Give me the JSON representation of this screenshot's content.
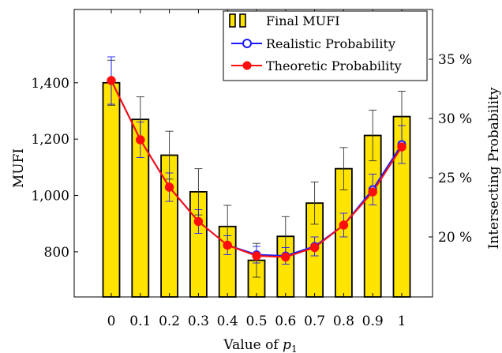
{
  "chart_data": {
    "type": "bar",
    "xlabel": "Value of ",
    "xlabel_var": "p",
    "xlabel_sub": "1",
    "ylabel_left": "MUFI",
    "ylabel_right": "Intersecting Probability",
    "categories": [
      "0",
      "0.1",
      "0.2",
      "0.3",
      "0.4",
      "0.5",
      "0.6",
      "0.7",
      "0.8",
      "0.9",
      "1"
    ],
    "y_left_lim": [
      640,
      1660
    ],
    "y_left_ticks": [
      800,
      1000,
      1200,
      1400
    ],
    "y_left_tick_labels": [
      "800",
      "1,000",
      "1,200",
      "1,400"
    ],
    "y_right_ticks": [
      20,
      25,
      30,
      35
    ],
    "y_right_tick_labels": [
      "20 %",
      "25 %",
      "30 %",
      "35 %"
    ],
    "bars": {
      "name": "Final MUFI",
      "color": "#ffe400",
      "values": [
        1400,
        1270,
        1143,
        1013,
        890,
        770,
        855,
        973,
        1095,
        1213,
        1280
      ],
      "error": [
        80,
        80,
        85,
        82,
        75,
        60,
        70,
        75,
        75,
        90,
        90
      ]
    },
    "series": [
      {
        "name": "Realistic Probability",
        "color": "#1a1aff",
        "marker": "open-circle",
        "values": [
          33.2,
          28.2,
          24.2,
          21.3,
          19.3,
          18.5,
          18.4,
          19.2,
          21.0,
          24.0,
          27.8
        ],
        "error": [
          2.0,
          1.5,
          1.2,
          1.0,
          0.8,
          0.7,
          0.7,
          0.8,
          1.0,
          1.3,
          1.6
        ]
      },
      {
        "name": "Theoretic Probability",
        "color": "#ff0d0d",
        "marker": "filled-circle",
        "values": [
          33.2,
          28.2,
          24.2,
          21.3,
          19.3,
          18.4,
          18.3,
          19.1,
          21.0,
          23.8,
          27.6
        ]
      }
    ],
    "legend_position": "top-right",
    "grid": false
  }
}
